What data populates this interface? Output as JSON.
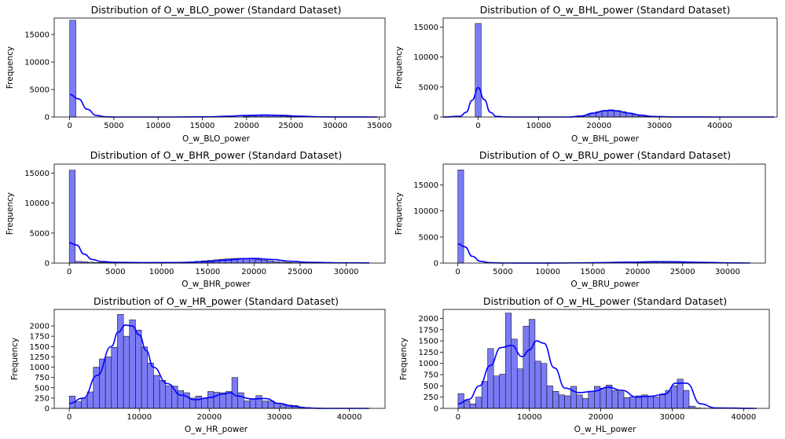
{
  "colors": {
    "bar_fill": "#7b7bf5",
    "bar_edge": "#000000",
    "kde_line": "#0000ff",
    "background": "#ffffff"
  },
  "chart_data": [
    {
      "type": "histogram",
      "title": "Distribution of O_w_BLO_power (Standard Dataset)",
      "xlabel": "O_w_BLO_power",
      "ylabel": "Frequency",
      "xlim": [
        -1745,
        35650
      ],
      "ylim": [
        0,
        18000
      ],
      "xticks": [
        0,
        5000,
        10000,
        15000,
        20000,
        25000,
        30000,
        35000
      ],
      "yticks": [
        0,
        5000,
        10000,
        15000
      ],
      "bins": 50,
      "bin_width": 700,
      "bin_start": 0,
      "bar_values": [
        17600,
        0,
        0,
        0,
        0,
        0,
        0,
        0,
        0,
        0,
        0,
        0,
        0,
        0,
        0,
        0,
        0,
        0,
        0,
        0,
        0,
        0,
        0,
        0,
        0,
        0,
        0,
        0,
        120,
        220,
        300,
        360,
        340,
        280,
        180,
        90,
        40,
        0,
        0,
        0,
        0,
        0,
        0,
        0,
        0,
        0,
        0,
        0,
        0,
        0
      ],
      "kde": {
        "x": [
          0,
          1000,
          2000,
          3000,
          4000,
          5000,
          8000,
          12000,
          16000,
          18000,
          20000,
          22000,
          24000,
          26000,
          28000,
          30000,
          34800
        ],
        "y": [
          4100,
          3300,
          1400,
          300,
          40,
          0,
          0,
          0,
          40,
          150,
          300,
          360,
          300,
          150,
          50,
          10,
          0
        ]
      }
    },
    {
      "type": "histogram",
      "title": "Distribution of O_w_BHL_power (Standard Dataset)",
      "xlabel": "O_w_BHL_power",
      "ylabel": "Frequency",
      "xlim": [
        -5800,
        49500
      ],
      "ylim": [
        0,
        16500
      ],
      "xticks": [
        0,
        10000,
        20000,
        30000,
        40000,
        50000
      ],
      "yticks": [
        0,
        5000,
        10000,
        15000
      ],
      "bins": 50,
      "bin_width": 1000,
      "bin_start": -500,
      "bar_values": [
        15600,
        0,
        0,
        0,
        0,
        0,
        0,
        0,
        0,
        0,
        0,
        0,
        0,
        0,
        0,
        0,
        20,
        120,
        320,
        650,
        900,
        1100,
        1200,
        1100,
        900,
        650,
        400,
        220,
        110,
        50,
        20,
        0,
        0,
        0,
        0,
        0,
        0,
        0,
        0,
        0,
        0,
        0,
        0,
        0,
        0,
        0,
        0,
        0,
        0,
        0
      ],
      "kde": {
        "x": [
          -5800,
          -3000,
          -2000,
          -1000,
          0,
          1000,
          2000,
          3000,
          5000,
          10000,
          15000,
          17000,
          19000,
          21000,
          22000,
          23000,
          25000,
          27000,
          29000,
          32000,
          40000,
          49000
        ],
        "y": [
          0,
          120,
          800,
          2800,
          4900,
          2900,
          800,
          100,
          0,
          0,
          0,
          150,
          650,
          1050,
          1100,
          1000,
          650,
          300,
          100,
          10,
          0,
          0
        ]
      }
    },
    {
      "type": "histogram",
      "title": "Distribution of O_w_BHR_power (Standard Dataset)",
      "xlabel": "O_w_BHR_power",
      "ylabel": "Frequency",
      "xlim": [
        -1630,
        34200
      ],
      "ylim": [
        0,
        16500
      ],
      "xticks": [
        0,
        5000,
        10000,
        15000,
        20000,
        25000,
        30000
      ],
      "yticks": [
        0,
        5000,
        10000,
        15000
      ],
      "bins": 50,
      "bin_width": 650,
      "bin_start": 0,
      "bar_values": [
        15500,
        280,
        220,
        150,
        100,
        80,
        60,
        50,
        40,
        40,
        40,
        40,
        40,
        40,
        50,
        60,
        80,
        100,
        120,
        160,
        220,
        300,
        380,
        460,
        550,
        640,
        720,
        780,
        800,
        780,
        720,
        620,
        500,
        380,
        260,
        160,
        100,
        60,
        40,
        30,
        30,
        30,
        30,
        30,
        30,
        30,
        30,
        30,
        30,
        30
      ],
      "kde": {
        "x": [
          0,
          800,
          1600,
          2500,
          3500,
          5000,
          8000,
          12000,
          15000,
          17000,
          19000,
          20000,
          22000,
          24000,
          26000,
          30000,
          32500
        ],
        "y": [
          3400,
          3000,
          1500,
          600,
          250,
          120,
          80,
          100,
          250,
          500,
          750,
          780,
          600,
          300,
          120,
          40,
          30
        ]
      }
    },
    {
      "type": "histogram",
      "title": "Distribution of O_w_BRU_power (Standard Dataset)",
      "xlabel": "O_w_BRU_power",
      "ylabel": "Frequency",
      "xlim": [
        -1630,
        34200
      ],
      "ylim": [
        0,
        19000
      ],
      "xticks": [
        0,
        5000,
        10000,
        15000,
        20000,
        25000,
        30000
      ],
      "yticks": [
        0,
        5000,
        10000,
        15000
      ],
      "bins": 50,
      "bin_width": 650,
      "bin_start": 0,
      "bar_values": [
        17900,
        0,
        0,
        0,
        0,
        0,
        0,
        0,
        0,
        0,
        0,
        0,
        0,
        0,
        0,
        0,
        0,
        0,
        0,
        0,
        0,
        0,
        0,
        0,
        0,
        0,
        0,
        0,
        0,
        0,
        100,
        150,
        200,
        240,
        260,
        270,
        260,
        240,
        200,
        160,
        120,
        80,
        50,
        30,
        20,
        10,
        0,
        0,
        0,
        0
      ],
      "kde": {
        "x": [
          0,
          800,
          1600,
          2500,
          3500,
          5000,
          8000,
          12000,
          16000,
          19000,
          22000,
          24000,
          27000,
          30000,
          32500
        ],
        "y": [
          3700,
          3100,
          1300,
          350,
          80,
          20,
          10,
          20,
          90,
          180,
          270,
          250,
          150,
          50,
          20
        ]
      }
    },
    {
      "type": "histogram",
      "title": "Distribution of O_w_HR_power (Standard Dataset)",
      "xlabel": "O_w_HR_power",
      "ylabel": "Frequency",
      "xlim": [
        -2150,
        45100
      ],
      "ylim": [
        0,
        2400
      ],
      "xticks": [
        0,
        10000,
        20000,
        30000,
        40000
      ],
      "yticks": [
        0,
        250,
        500,
        750,
        1000,
        1250,
        1500,
        1750,
        2000
      ],
      "bins": 50,
      "bin_width": 860,
      "bin_start": 0,
      "bar_values": [
        300,
        160,
        250,
        400,
        1000,
        1200,
        1250,
        1480,
        2280,
        1750,
        2150,
        1900,
        1490,
        1100,
        800,
        680,
        550,
        540,
        430,
        380,
        250,
        300,
        240,
        410,
        390,
        380,
        410,
        750,
        380,
        180,
        230,
        310,
        180,
        180,
        120,
        80,
        80,
        70,
        30,
        20,
        10,
        10,
        5,
        5,
        5,
        5,
        5,
        5,
        5,
        3
      ],
      "kde": {
        "x": [
          0,
          2000,
          4000,
          6000,
          7000,
          8000,
          9000,
          10000,
          11000,
          12000,
          14000,
          16000,
          18000,
          20000,
          22000,
          23000,
          24000,
          26000,
          28000,
          30000,
          32000,
          34000,
          36000,
          42800
        ],
        "y": [
          120,
          250,
          800,
          1500,
          1850,
          2020,
          2000,
          1780,
          1400,
          1000,
          600,
          320,
          210,
          260,
          350,
          380,
          300,
          230,
          240,
          120,
          50,
          10,
          0,
          0
        ]
      }
    },
    {
      "type": "histogram",
      "title": "Distribution of O_w_HL_power (Standard Dataset)",
      "xlabel": "O_w_HL_power",
      "ylabel": "Frequency",
      "xlim": [
        -2080,
        43600
      ],
      "ylim": [
        0,
        2200
      ],
      "xticks": [
        0,
        10000,
        20000,
        30000,
        40000
      ],
      "yticks": [
        0,
        250,
        500,
        750,
        1000,
        1250,
        1500,
        1750,
        2000
      ],
      "bins": 50,
      "bin_width": 830,
      "bin_start": 0,
      "bar_values": [
        330,
        170,
        100,
        250,
        600,
        1330,
        720,
        760,
        2120,
        1540,
        880,
        1830,
        1980,
        1050,
        1000,
        500,
        380,
        300,
        280,
        490,
        300,
        220,
        380,
        490,
        450,
        520,
        400,
        370,
        240,
        260,
        280,
        300,
        270,
        250,
        300,
        400,
        500,
        650,
        400,
        50,
        10,
        5,
        3,
        3,
        3,
        3,
        3,
        3,
        3,
        3
      ],
      "kde": {
        "x": [
          0,
          1500,
          3000,
          4500,
          6000,
          7500,
          9000,
          10000,
          11000,
          12000,
          13500,
          15000,
          17000,
          19000,
          21000,
          23000,
          25000,
          27000,
          29000,
          30500,
          32000,
          34000,
          36000,
          41800
        ],
        "y": [
          100,
          200,
          500,
          950,
          1350,
          1400,
          1150,
          1300,
          1500,
          1450,
          900,
          450,
          350,
          380,
          470,
          400,
          250,
          270,
          320,
          560,
          560,
          100,
          10,
          0
        ]
      }
    }
  ]
}
